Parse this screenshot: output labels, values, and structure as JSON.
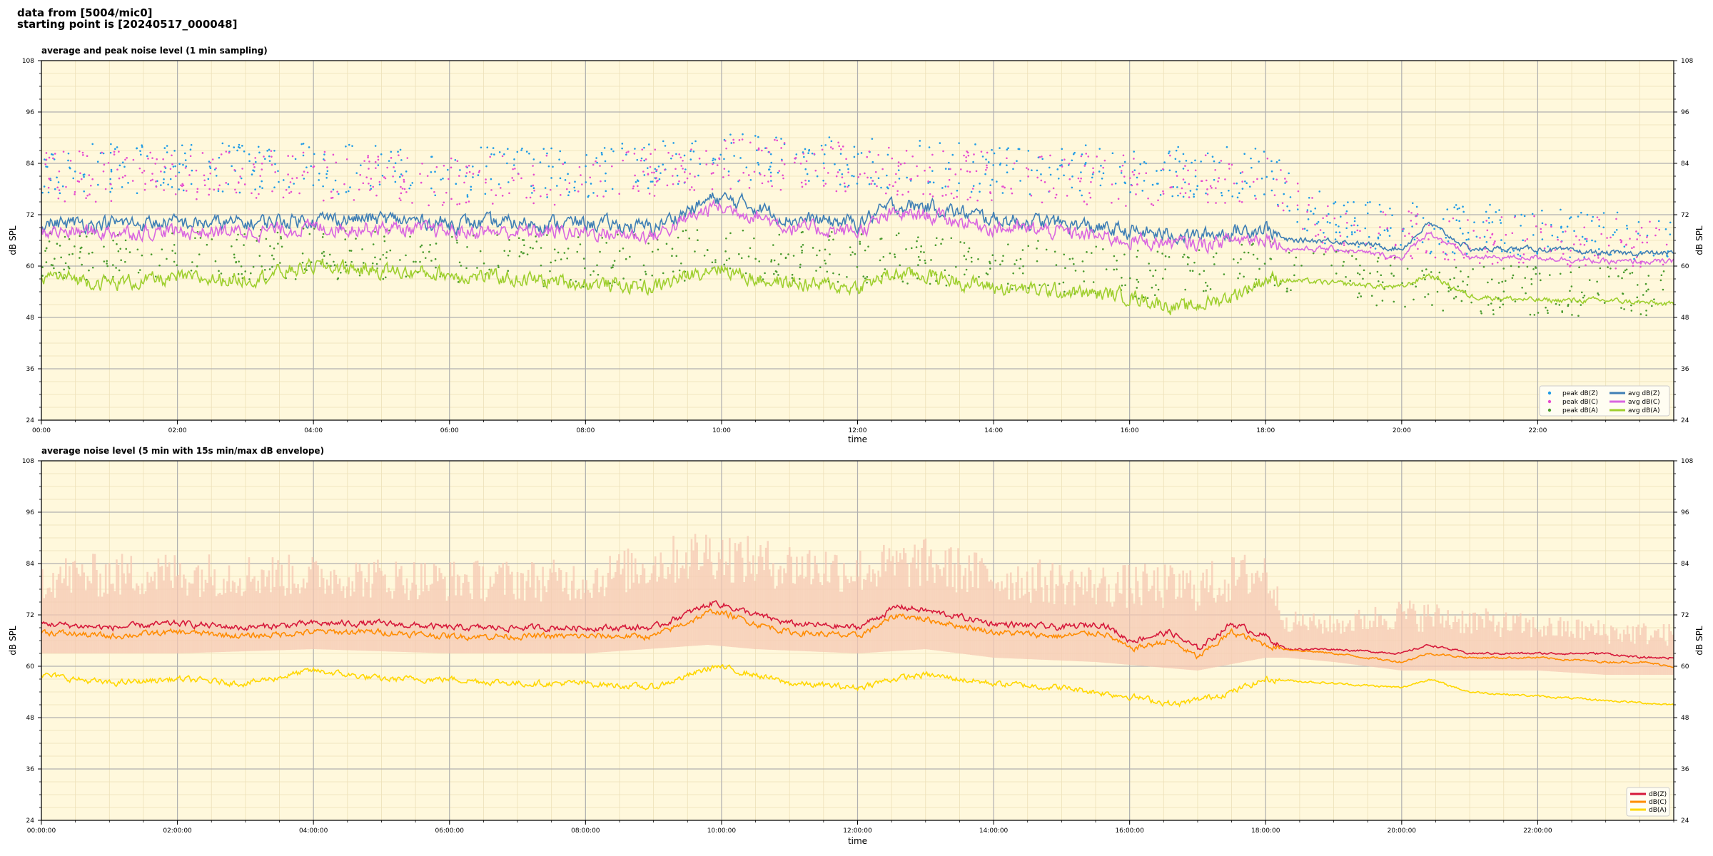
{
  "header": {
    "line1": "data from [5004/mic0]",
    "line2": "starting point is [20240517_000048]"
  },
  "chart_data": [
    {
      "type": "line",
      "title": "average and peak noise level (1 min sampling)",
      "xlabel": "time",
      "ylabel": "dB SPL",
      "xlim": [
        0,
        24
      ],
      "ylim": [
        24,
        108
      ],
      "xticks": [
        "00:00",
        "02:00",
        "04:00",
        "06:00",
        "08:00",
        "10:00",
        "12:00",
        "14:00",
        "16:00",
        "18:00",
        "20:00",
        "22:00"
      ],
      "yticks": [
        24,
        36,
        48,
        60,
        72,
        84,
        96,
        108
      ],
      "grid": true,
      "legend_position": "lower right",
      "legend_columns": 2,
      "x_unit": "hours since 00:00",
      "series": [
        {
          "name": "peak dB(Z)",
          "kind": "scatter",
          "color": "#1f9be6",
          "x": [
            0,
            2,
            4,
            6,
            8,
            10,
            12,
            14,
            16,
            18,
            19,
            20,
            22,
            24
          ],
          "values": [
            83,
            83,
            83,
            82,
            82,
            85,
            84,
            83,
            82,
            82,
            69,
            69,
            68,
            67
          ]
        },
        {
          "name": "peak dB(C)",
          "kind": "scatter",
          "color": "#e64ccf",
          "x": [
            0,
            2,
            4,
            6,
            8,
            10,
            12,
            14,
            16,
            18,
            19,
            20,
            22,
            24
          ],
          "values": [
            81,
            81,
            81,
            80,
            80,
            84,
            83,
            81,
            80,
            80,
            67,
            67,
            66,
            65
          ]
        },
        {
          "name": "peak dB(A)",
          "kind": "scatter",
          "color": "#4a9a2e",
          "x": [
            0,
            2,
            4,
            6,
            8,
            10,
            12,
            14,
            16,
            18,
            19,
            20,
            22,
            24
          ],
          "values": [
            62,
            62,
            63,
            62,
            61,
            63,
            62,
            61,
            58,
            60,
            58,
            56,
            54,
            54
          ]
        },
        {
          "name": "avg dB(Z)",
          "kind": "line",
          "color": "#3f7fb5",
          "x": [
            0,
            1,
            2,
            3,
            4,
            5,
            6,
            7,
            8,
            9,
            9.9,
            10.5,
            11,
            12,
            12.5,
            13,
            14,
            15,
            16,
            17,
            18,
            18.3,
            19,
            20,
            20.4,
            21,
            22,
            23,
            24
          ],
          "values": [
            70,
            70,
            70,
            70,
            71,
            71,
            70,
            70,
            70,
            69,
            76,
            74,
            71,
            70,
            74,
            74,
            71,
            70,
            68,
            67,
            69,
            66,
            66,
            64,
            70,
            64,
            64,
            63,
            63
          ]
        },
        {
          "name": "avg dB(C)",
          "kind": "line",
          "color": "#d966e0",
          "x": [
            0,
            1,
            2,
            3,
            4,
            5,
            6,
            7,
            8,
            9,
            9.9,
            10.5,
            11,
            12,
            12.5,
            13,
            14,
            15,
            16,
            17,
            18,
            18.3,
            19,
            20,
            20.4,
            21,
            22,
            23,
            24
          ],
          "values": [
            68,
            68,
            68,
            68,
            69,
            69,
            68,
            68,
            68,
            67,
            74,
            72,
            69,
            68,
            72,
            72,
            69,
            68,
            66,
            65,
            67,
            64,
            64,
            62,
            68,
            62,
            62,
            61,
            61
          ]
        },
        {
          "name": "avg dB(A)",
          "kind": "line",
          "color": "#9fcf2f",
          "x": [
            0,
            1,
            2,
            3,
            4,
            5,
            6,
            7,
            8,
            9,
            9.9,
            10.5,
            11,
            12,
            12.5,
            13,
            14,
            15,
            16,
            16.8,
            17.5,
            18,
            19,
            20,
            20.4,
            21,
            22,
            23,
            24
          ],
          "values": [
            58,
            56,
            57,
            57,
            60,
            59,
            58,
            57,
            56,
            55,
            60,
            57,
            56,
            55,
            58,
            58,
            55,
            54,
            53,
            50,
            53,
            57,
            56,
            55,
            58,
            53,
            52,
            52,
            51
          ]
        }
      ]
    },
    {
      "type": "line",
      "title": "average noise level (5 min with 15s min/max dB envelope)",
      "xlabel": "time",
      "ylabel": "dB SPL",
      "xlim": [
        0,
        24
      ],
      "ylim": [
        24,
        108
      ],
      "xticks": [
        "00:00:00",
        "02:00:00",
        "04:00:00",
        "06:00:00",
        "08:00:00",
        "10:00:00",
        "12:00:00",
        "14:00:00",
        "16:00:00",
        "18:00:00",
        "20:00:00",
        "22:00:00"
      ],
      "yticks": [
        24,
        36,
        48,
        60,
        72,
        84,
        96,
        108
      ],
      "grid": true,
      "legend_position": "lower right",
      "legend_columns": 1,
      "x_unit": "hours since 00:00",
      "envelope": {
        "color": "#f6c9b3",
        "x": [
          0,
          2,
          4,
          6,
          8,
          9.8,
          10.5,
          12,
          13,
          14,
          15.5,
          17,
          18,
          18.3,
          19,
          20,
          21,
          22,
          23,
          24
        ],
        "upper": [
          86,
          87,
          86,
          85,
          85,
          93,
          90,
          88,
          90,
          86,
          84,
          84,
          88,
          73,
          72,
          76,
          74,
          72,
          71,
          70
        ],
        "lower": [
          63,
          63,
          64,
          63,
          63,
          65,
          64,
          63,
          64,
          62,
          61,
          59,
          62,
          62,
          61,
          59,
          59,
          59,
          58,
          58
        ]
      },
      "series": [
        {
          "name": "dB(Z)",
          "color": "#d6183a",
          "x": [
            0,
            1,
            2,
            3,
            4,
            5,
            6,
            7,
            8,
            9,
            9.9,
            10.5,
            11,
            12,
            12.6,
            13,
            14,
            15,
            15.6,
            16,
            16.6,
            17,
            17.5,
            18,
            18.3,
            19,
            20,
            20.4,
            21,
            22,
            23,
            23.5,
            24
          ],
          "values": [
            70,
            69,
            70,
            69,
            70,
            70,
            69,
            69,
            69,
            69,
            75,
            72,
            70,
            69,
            74,
            73,
            70,
            69,
            70,
            66,
            68,
            64,
            70,
            67,
            64,
            64,
            63,
            65,
            63,
            63,
            63,
            62,
            62
          ]
        },
        {
          "name": "dB(C)",
          "color": "#ff8c00",
          "x": [
            0,
            1,
            2,
            3,
            4,
            5,
            6,
            7,
            8,
            9,
            9.9,
            10.5,
            11,
            12,
            12.6,
            13,
            14,
            15,
            15.6,
            16,
            16.6,
            17,
            17.5,
            18,
            18.3,
            19,
            20,
            20.4,
            21,
            22,
            23,
            23.5,
            24
          ],
          "values": [
            68,
            67,
            68,
            67,
            68,
            68,
            67,
            67,
            67,
            67,
            73,
            70,
            68,
            67,
            72,
            71,
            68,
            67,
            68,
            64,
            66,
            62,
            68,
            65,
            64,
            63,
            61,
            63,
            62,
            62,
            61,
            61,
            60
          ]
        },
        {
          "name": "dB(A)",
          "color": "#ffd700",
          "x": [
            0,
            1,
            2,
            3,
            4,
            5,
            6,
            7,
            8,
            9,
            9.9,
            10.5,
            11,
            12,
            12.5,
            13,
            14,
            15,
            16,
            16.7,
            17.5,
            18,
            19,
            20,
            20.4,
            21,
            22,
            23,
            24
          ],
          "values": [
            58,
            56,
            57,
            56,
            59,
            57,
            57,
            56,
            56,
            55,
            60,
            58,
            56,
            55,
            57,
            58,
            56,
            55,
            53,
            51,
            54,
            57,
            56,
            55,
            57,
            54,
            53,
            52,
            51
          ]
        }
      ]
    }
  ]
}
